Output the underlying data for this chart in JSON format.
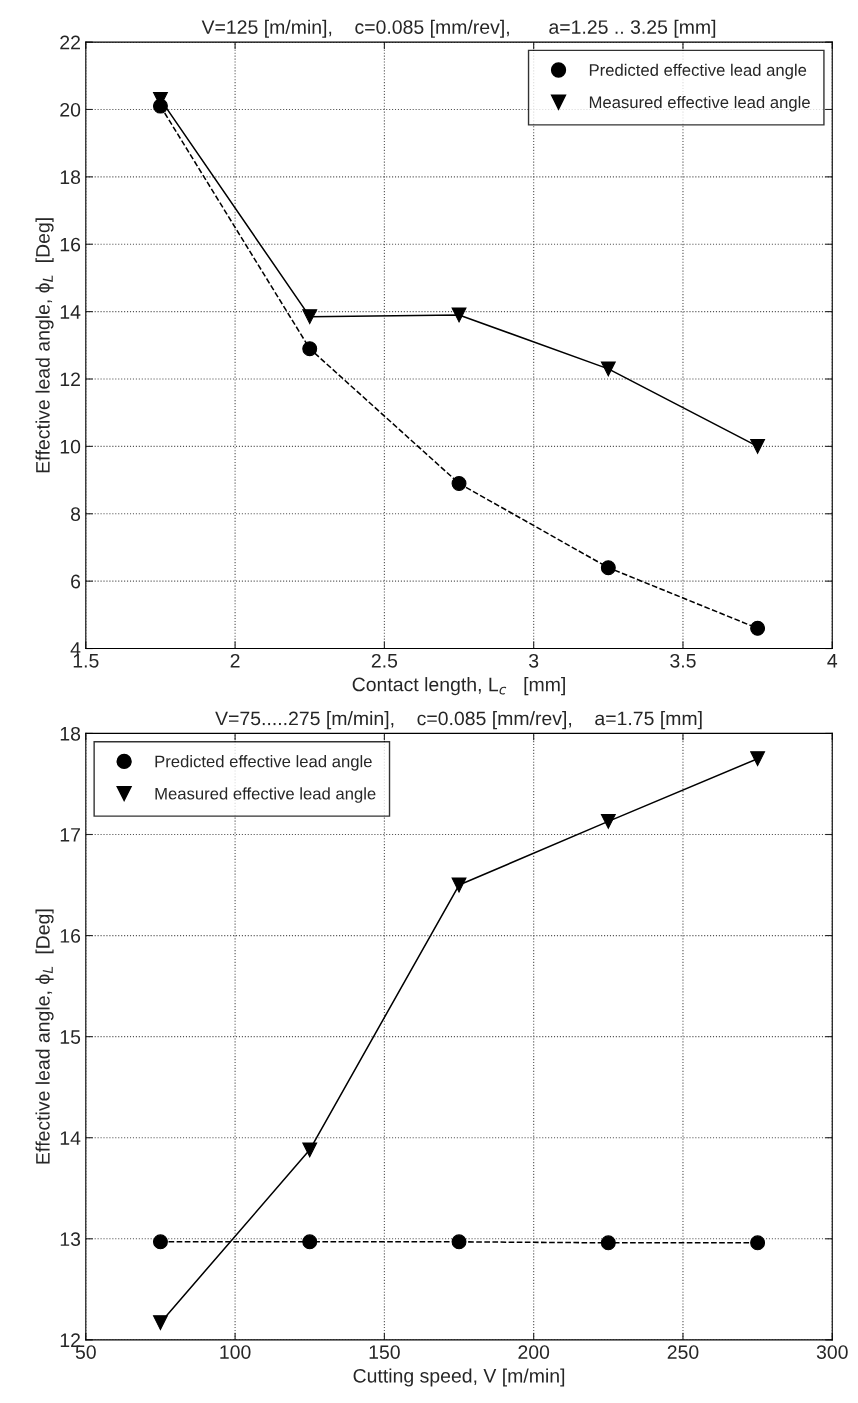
{
  "chart_data": [
    {
      "type": "line",
      "title": "V=125 [m/min],    c=0.085 [mm/rev],       a=1.25 .. 3.25 [mm]",
      "xlabel": "Contact length, L$_{c}$   [mm]",
      "ylabel": "Effective lead angle, ϕ$_{L}$  [Deg]",
      "x": [
        1.75,
        2.25,
        2.75,
        3.25,
        3.75
      ],
      "series": [
        {
          "name": "Predicted effective lead angle",
          "color": "#000000",
          "marker": "circle",
          "line_style": "dashed",
          "values": [
            20.1,
            12.9,
            8.9,
            6.4,
            4.6
          ]
        },
        {
          "name": "Measured effective lead angle",
          "color": "#000000",
          "marker": "triangle",
          "line_style": "solid",
          "values": [
            20.3,
            13.85,
            13.9,
            12.3,
            10.0
          ]
        }
      ],
      "xlim": [
        1.5,
        4
      ],
      "xticks": [
        1.5,
        2,
        2.5,
        3,
        3.5,
        4
      ],
      "ylim": [
        4,
        22
      ],
      "yticks": [
        4,
        6,
        8,
        10,
        12,
        14,
        16,
        18,
        20,
        22
      ],
      "grid": true,
      "legend": "top right"
    },
    {
      "type": "line",
      "title": "V=75.....275 [m/min],    c=0.085 [mm/rev],    a=1.75 [mm]",
      "xlabel": "Cutting speed, V [m/min]",
      "ylabel": "Effective lead angle, ϕ$_{L}$  [Deg]",
      "x": [
        75,
        125,
        175,
        225,
        275
      ],
      "series": [
        {
          "name": "Predicted effective lead angle",
          "color": "#000000",
          "marker": "circle",
          "line_style": "dashed",
          "values": [
            12.97,
            12.97,
            12.97,
            12.96,
            12.96
          ]
        },
        {
          "name": "Measured effective lead angle",
          "color": "#000000",
          "marker": "triangle",
          "line_style": "solid",
          "values": [
            12.17,
            13.88,
            16.5,
            17.13,
            17.75
          ]
        }
      ],
      "xlim": [
        50,
        300
      ],
      "xticks": [
        50,
        100,
        150,
        200,
        250,
        300
      ],
      "ylim": [
        12,
        18
      ],
      "yticks": [
        12,
        13,
        14,
        15,
        16,
        17,
        18
      ],
      "grid": true,
      "legend": "top left"
    }
  ]
}
